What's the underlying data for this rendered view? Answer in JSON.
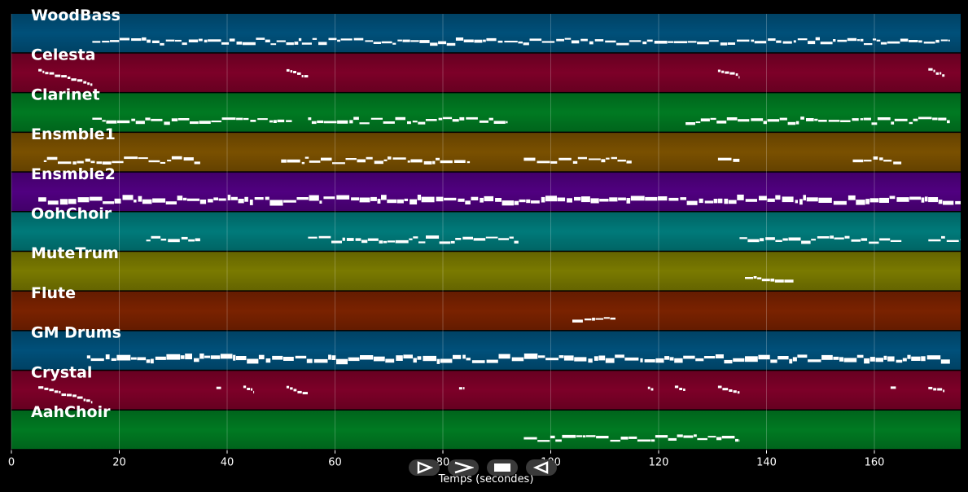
{
  "chart_data": {
    "type": "piano-roll",
    "xlabel": "Temps (secondes)",
    "xlim": [
      0,
      176
    ],
    "xticks": [
      0,
      20,
      40,
      60,
      80,
      100,
      120,
      140,
      160
    ],
    "grid": true,
    "tracks": [
      {
        "name": "WoodBass",
        "color": "#00507a",
        "segments": [
          [
            15,
            174
          ]
        ],
        "bursts": []
      },
      {
        "name": "Celesta",
        "color": "#7d0028",
        "segments": [],
        "bursts": [
          [
            5,
            15
          ],
          [
            51,
            55
          ],
          [
            131,
            135
          ],
          [
            170,
            173
          ]
        ]
      },
      {
        "name": "Clarinet",
        "color": "#007a22",
        "segments": [
          [
            15,
            52
          ],
          [
            55,
            92
          ],
          [
            125,
            174
          ]
        ],
        "bursts": []
      },
      {
        "name": "Ensmble1",
        "color": "#7a5000",
        "segments": [
          [
            6,
            35
          ],
          [
            50,
            85
          ],
          [
            95,
            115
          ],
          [
            131,
            135
          ],
          [
            156,
            165
          ]
        ],
        "bursts": []
      },
      {
        "name": "Ensmble2",
        "color": "#500080",
        "segments": [
          [
            5,
            176
          ]
        ],
        "bursts": []
      },
      {
        "name": "OohChoir",
        "color": "#007a7a",
        "segments": [
          [
            25,
            35
          ],
          [
            55,
            94
          ],
          [
            135,
            165
          ],
          [
            170,
            176
          ]
        ],
        "bursts": []
      },
      {
        "name": "MuteTrum",
        "color": "#7a7a00",
        "segments": [
          [
            136,
            145
          ]
        ],
        "bursts": []
      },
      {
        "name": "Flute",
        "color": "#7a2200",
        "segments": [
          [
            104,
            112
          ]
        ],
        "bursts": []
      },
      {
        "name": "GM Drums",
        "color": "#00507a",
        "segments": [
          [
            14,
            174
          ]
        ],
        "bursts": []
      },
      {
        "name": "Crystal",
        "color": "#7d0028",
        "segments": [],
        "bursts": [
          [
            5,
            15
          ],
          [
            38,
            39
          ],
          [
            43,
            45
          ],
          [
            51,
            55
          ],
          [
            83,
            84
          ],
          [
            118,
            119
          ],
          [
            123,
            125
          ],
          [
            131,
            135
          ],
          [
            163,
            164
          ],
          [
            170,
            173
          ]
        ]
      },
      {
        "name": "AahChoir",
        "color": "#007a22",
        "segments": [
          [
            95,
            135
          ]
        ],
        "bursts": []
      }
    ]
  },
  "controls": [
    {
      "name": "play",
      "icon": "play-icon"
    },
    {
      "name": "next",
      "icon": "chevron-right-icon"
    },
    {
      "name": "stop",
      "icon": "stop-icon"
    },
    {
      "name": "prev",
      "icon": "chevron-left-icon"
    }
  ]
}
